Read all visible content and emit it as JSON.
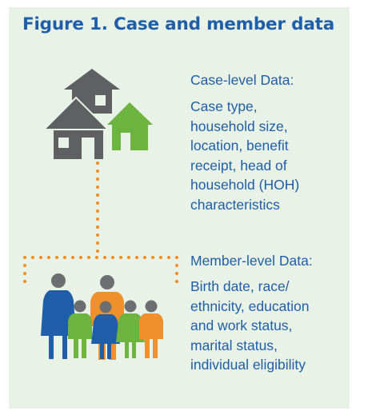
{
  "figure": {
    "title": "Figure 1. Case and member data"
  },
  "case_level": {
    "heading": "Case-level Data:",
    "text": "Case type,\nhousehold size,\nlocation, benefit\nreceipt, head of\nhousehold (HOH)\ncharacteristics"
  },
  "member_level": {
    "heading": "Member-level Data:",
    "text": "Birth date, race/\nethnicity, education\nand work status,\nmarital status,\nindividual eligibility"
  },
  "colors": {
    "panel_bg": "#e8f2e6",
    "title_blue": "#1f5ea8",
    "house_gray": "#5f6062",
    "house_green": "#6db33f",
    "connector_orange": "#f0902c",
    "person_blue": "#1f5ea8",
    "person_orange": "#f0902c",
    "person_green": "#6db33f",
    "head_gray": "#6d6e70"
  },
  "icons": [
    "houses-icon",
    "family-icon",
    "dotted-connector"
  ]
}
